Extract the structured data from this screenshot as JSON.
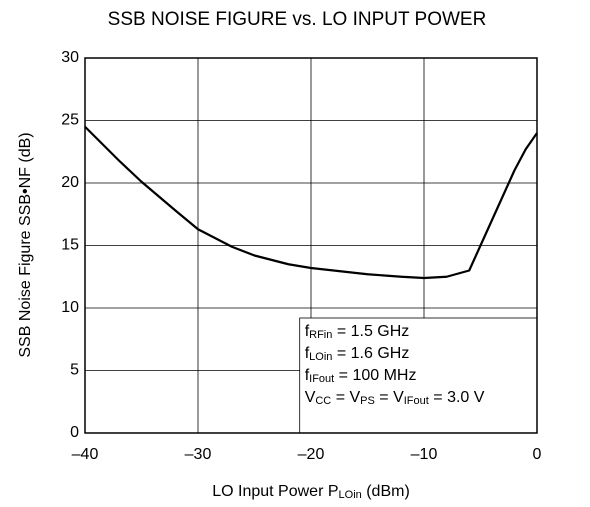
{
  "chart_data": {
    "type": "line",
    "title": "SSB NOISE FIGURE vs. LO INPUT POWER",
    "x_label": [
      "LO Input Power  P",
      "LOin",
      " (dBm)"
    ],
    "y_label": "SSB Noise Figure  SSB•NF (dB)",
    "x": [
      -40,
      -37,
      -35,
      -32,
      -30,
      -27,
      -25,
      -22,
      -20,
      -17,
      -15,
      -12,
      -10,
      -8,
      -6,
      -5,
      -4,
      -3,
      -2,
      -1,
      0
    ],
    "series": [
      {
        "name": "SSB NF",
        "color": "#000000",
        "values": [
          24.5,
          21.8,
          20.1,
          17.8,
          16.3,
          14.9,
          14.2,
          13.5,
          13.2,
          12.9,
          12.7,
          12.5,
          12.4,
          12.5,
          13.0,
          15.0,
          17.0,
          19.0,
          21.0,
          22.7,
          24.0
        ]
      }
    ],
    "xlim": [
      -40,
      0
    ],
    "ylim": [
      0,
      30
    ],
    "xticks": [
      {
        "value": -40,
        "label": "–40"
      },
      {
        "value": -30,
        "label": "–30"
      },
      {
        "value": -20,
        "label": "–20"
      },
      {
        "value": -10,
        "label": "–10"
      },
      0
    ],
    "yticks": [
      0,
      5,
      10,
      15,
      20,
      25,
      30
    ],
    "grid": true,
    "annotations": [
      [
        "f",
        "RFin",
        " = 1.5 GHz"
      ],
      [
        "f",
        "LOin",
        " = 1.6 GHz"
      ],
      [
        "f",
        "IFout",
        " = 100 MHz"
      ],
      [
        "V",
        "CC",
        " = V",
        "PS",
        " = V",
        "IFout",
        " = 3.0 V"
      ]
    ]
  }
}
